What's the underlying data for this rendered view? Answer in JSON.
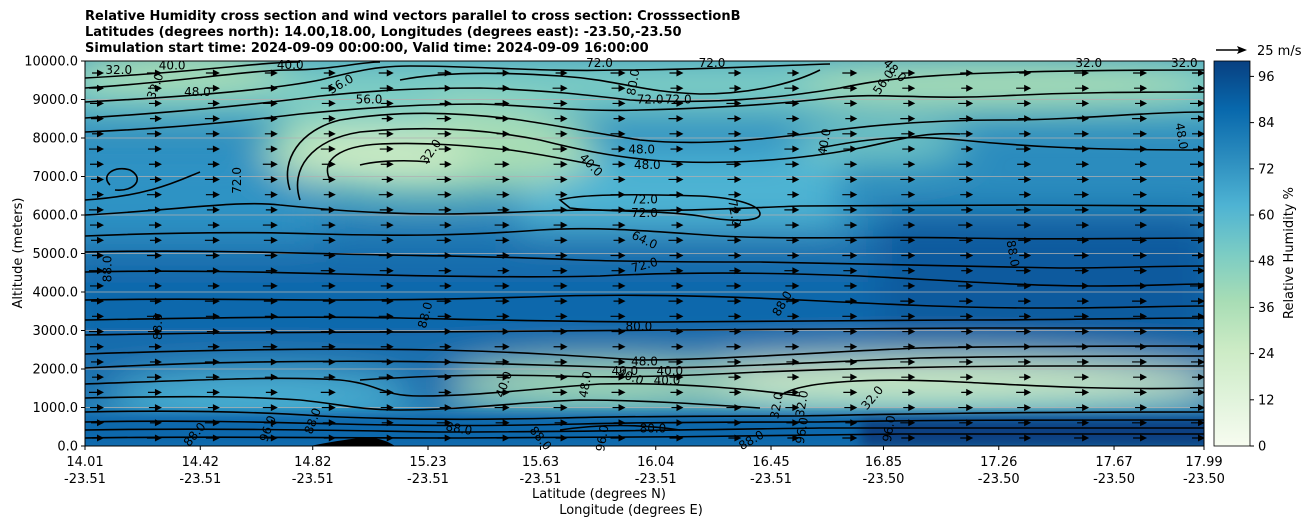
{
  "chart_data": {
    "type": "heatmap",
    "title_lines": [
      "Relative Humidity cross section and wind vectors parallel to cross section: CrosssectionB",
      "Latitudes (degrees north): 14.00,18.00, Longitudes (degrees east): -23.50,-23.50",
      "Simulation start time: 2024-09-09 00:00:00, Valid time: 2024-09-09 16:00:00"
    ],
    "ylabel": "Altitude (meters)",
    "xlabel_lat": "Latitude (degrees N)",
    "xlabel_lon": "Longitude (degrees E)",
    "ylim": [
      0,
      10000
    ],
    "y_ticks": [
      "0.0",
      "1000.0",
      "2000.0",
      "3000.0",
      "4000.0",
      "5000.0",
      "6000.0",
      "7000.0",
      "8000.0",
      "9000.0",
      "10000.0"
    ],
    "x_ticks": [
      {
        "lat": "14.01",
        "lon": "-23.51"
      },
      {
        "lat": "14.42",
        "lon": "-23.51"
      },
      {
        "lat": "14.82",
        "lon": "-23.51"
      },
      {
        "lat": "15.23",
        "lon": "-23.51"
      },
      {
        "lat": "15.63",
        "lon": "-23.51"
      },
      {
        "lat": "16.04",
        "lon": "-23.51"
      },
      {
        "lat": "16.45",
        "lon": "-23.51"
      },
      {
        "lat": "16.85",
        "lon": "-23.50"
      },
      {
        "lat": "17.26",
        "lon": "-23.50"
      },
      {
        "lat": "17.67",
        "lon": "-23.50"
      },
      {
        "lat": "17.99",
        "lon": "-23.50"
      }
    ],
    "grid": "horizontal",
    "colorbar": {
      "label": "Relative Humidity %",
      "range": [
        0,
        100
      ],
      "ticks": [
        "0",
        "12",
        "24",
        "36",
        "48",
        "60",
        "72",
        "84",
        "96"
      ],
      "cmap": "GnBu",
      "colors": [
        "#f7fcf0",
        "#e0f3db",
        "#ccebc5",
        "#a8ddb5",
        "#7bccc4",
        "#4eb3d3",
        "#2b8cbe",
        "#0868ac",
        "#084081"
      ]
    },
    "quiver_key": "25 m/s",
    "contour_labels": [
      {
        "text": "32.0",
        "lat": 14.13,
        "alt": 9770,
        "rot": 0
      },
      {
        "text": "40.0",
        "lat": 14.32,
        "alt": 9880,
        "rot": 0
      },
      {
        "text": "32.0",
        "lat": 14.26,
        "alt": 9350,
        "rot": -70
      },
      {
        "text": "48.0",
        "lat": 14.41,
        "alt": 9200,
        "rot": 0
      },
      {
        "text": "40.0",
        "lat": 14.74,
        "alt": 9900,
        "rot": 0
      },
      {
        "text": "56.0",
        "lat": 14.92,
        "alt": 9400,
        "rot": -30
      },
      {
        "text": "56.0",
        "lat": 15.02,
        "alt": 9000,
        "rot": 0
      },
      {
        "text": "72.0",
        "lat": 15.84,
        "alt": 9950,
        "rot": 0
      },
      {
        "text": "80.0",
        "lat": 15.96,
        "alt": 9450,
        "rot": -80
      },
      {
        "text": "72.0",
        "lat": 16.02,
        "alt": 9000,
        "rot": 0
      },
      {
        "text": "72.0",
        "lat": 16.12,
        "alt": 9000,
        "rot": 0
      },
      {
        "text": "72.0",
        "lat": 16.24,
        "alt": 9950,
        "rot": 0
      },
      {
        "text": "56.0",
        "lat": 16.85,
        "alt": 9450,
        "rot": -55
      },
      {
        "text": "48.0",
        "lat": 16.89,
        "alt": 9750,
        "rot": 45
      },
      {
        "text": "32.0",
        "lat": 17.58,
        "alt": 9950,
        "rot": 0
      },
      {
        "text": "32.0",
        "lat": 17.92,
        "alt": 9950,
        "rot": 0
      },
      {
        "text": "48.0",
        "lat": 17.91,
        "alt": 8050,
        "rot": 80
      },
      {
        "text": "40.0",
        "lat": 16.64,
        "alt": 7900,
        "rot": -80
      },
      {
        "text": "32.0",
        "lat": 15.24,
        "alt": 7650,
        "rot": -55
      },
      {
        "text": "48.0",
        "lat": 15.99,
        "alt": 7700,
        "rot": 0
      },
      {
        "text": "40.0",
        "lat": 15.81,
        "alt": 7300,
        "rot": 45
      },
      {
        "text": "48.0",
        "lat": 16.01,
        "alt": 7300,
        "rot": 0
      },
      {
        "text": "72.0",
        "lat": 14.55,
        "alt": 6900,
        "rot": -90
      },
      {
        "text": "72.0",
        "lat": 16.0,
        "alt": 6400,
        "rot": 0
      },
      {
        "text": "72.0",
        "lat": 16.0,
        "alt": 6050,
        "rot": 0
      },
      {
        "text": "72.0",
        "lat": 16.32,
        "alt": 6050,
        "rot": 80
      },
      {
        "text": "64.0",
        "lat": 16.0,
        "alt": 5350,
        "rot": 25
      },
      {
        "text": "72.0",
        "lat": 16.0,
        "alt": 4700,
        "rot": -15
      },
      {
        "text": "88.0",
        "lat": 17.31,
        "alt": 5000,
        "rot": 80
      },
      {
        "text": "88.0",
        "lat": 14.09,
        "alt": 4600,
        "rot": -90
      },
      {
        "text": "88.0",
        "lat": 15.22,
        "alt": 3400,
        "rot": -75
      },
      {
        "text": "88.0",
        "lat": 16.49,
        "alt": 3700,
        "rot": -60
      },
      {
        "text": "88.0",
        "lat": 14.27,
        "alt": 3100,
        "rot": -90
      },
      {
        "text": "80.0",
        "lat": 15.98,
        "alt": 3100,
        "rot": 0
      },
      {
        "text": "48.0",
        "lat": 16.0,
        "alt": 2200,
        "rot": 0
      },
      {
        "text": "40.0",
        "lat": 15.93,
        "alt": 1950,
        "rot": 0
      },
      {
        "text": "40.0",
        "lat": 16.09,
        "alt": 1950,
        "rot": 0
      },
      {
        "text": "40.0",
        "lat": 15.95,
        "alt": 1800,
        "rot": 20
      },
      {
        "text": "40.0",
        "lat": 16.08,
        "alt": 1700,
        "rot": 0
      },
      {
        "text": "40.0",
        "lat": 15.5,
        "alt": 1600,
        "rot": -70
      },
      {
        "text": "48.0",
        "lat": 15.79,
        "alt": 1600,
        "rot": -80
      },
      {
        "text": "32.0",
        "lat": 16.47,
        "alt": 1050,
        "rot": -80
      },
      {
        "text": "32.0",
        "lat": 16.56,
        "alt": 1100,
        "rot": -80
      },
      {
        "text": "32.0",
        "lat": 16.81,
        "alt": 1250,
        "rot": -50
      },
      {
        "text": "88.0",
        "lat": 14.4,
        "alt": 300,
        "rot": -50
      },
      {
        "text": "88.0",
        "lat": 14.82,
        "alt": 650,
        "rot": -70
      },
      {
        "text": "96.0",
        "lat": 14.66,
        "alt": 450,
        "rot": -70
      },
      {
        "text": "88.0",
        "lat": 15.34,
        "alt": 450,
        "rot": 10
      },
      {
        "text": "88.0",
        "lat": 15.63,
        "alt": 200,
        "rot": 50
      },
      {
        "text": "96.0",
        "lat": 15.85,
        "alt": 200,
        "rot": -80
      },
      {
        "text": "88.0",
        "lat": 16.38,
        "alt": 150,
        "rot": -30
      },
      {
        "text": "96.0",
        "lat": 16.56,
        "alt": 400,
        "rot": -80
      },
      {
        "text": "80.0",
        "lat": 16.03,
        "alt": 450,
        "rot": 0
      },
      {
        "text": "96.0",
        "lat": 16.87,
        "alt": 450,
        "rot": -80
      }
    ]
  }
}
